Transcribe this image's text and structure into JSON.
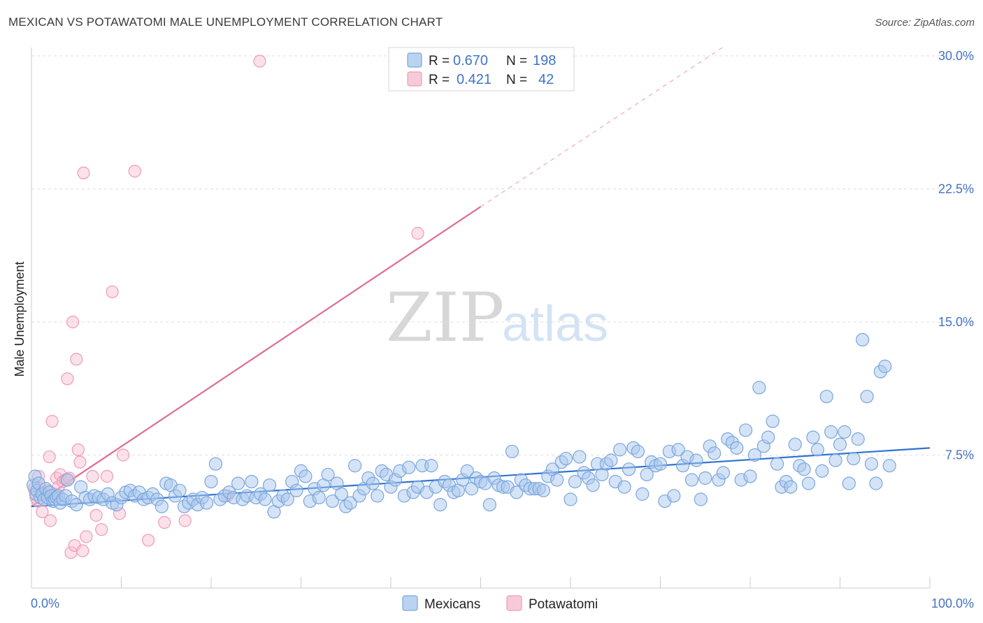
{
  "title": "MEXICAN VS POTAWATOMI MALE UNEMPLOYMENT CORRELATION CHART",
  "source": "Source: ZipAtlas.com",
  "watermark": {
    "zip": "ZIP",
    "atlas": "atlas"
  },
  "colors": {
    "mexicans_fill": "#a9c8ee",
    "mexicans_stroke": "#7aa6dc",
    "mexicans_line": "#2f73d0",
    "potawatomi_fill": "#f6bdd0",
    "potawatomi_stroke": "#ef9bb8",
    "potawatomi_line": "#e26a96",
    "tick_label": "#4472c4",
    "grid": "#dddddd"
  },
  "legend": {
    "rows": [
      {
        "r_label": "R = ",
        "r_value": "0.670",
        "n_label": "N = ",
        "n_value": "198"
      },
      {
        "r_label": "R = ",
        "r_value": "0.421",
        "n_label": "N = ",
        "n_value": "42"
      }
    ]
  },
  "bottom_legend": [
    "Mexicans",
    "Potawatomi"
  ],
  "chart_data": {
    "type": "scatter",
    "title": "MEXICAN VS POTAWATOMI MALE UNEMPLOYMENT CORRELATION CHART",
    "xlabel": "",
    "ylabel": "Male Unemployment",
    "xlim": [
      0,
      100
    ],
    "ylim": [
      0,
      30
    ],
    "x_tick_labels": [
      "0.0%",
      "100.0%"
    ],
    "y_ticks": [
      7.5,
      15.0,
      22.5,
      30.0
    ],
    "y_tick_labels": [
      "7.5%",
      "15.0%",
      "22.5%",
      "30.0%"
    ],
    "grid": true,
    "legend_position": "top-center",
    "series": [
      {
        "name": "Mexicans",
        "r": 0.67,
        "n": 198,
        "trend": {
          "x": [
            0,
            100
          ],
          "y": [
            4.6,
            7.9
          ]
        },
        "points": [
          [
            0.2,
            5.8
          ],
          [
            0.4,
            6.3
          ],
          [
            0.5,
            5.3
          ],
          [
            0.6,
            5.5
          ],
          [
            0.8,
            5.9
          ],
          [
            1.0,
            5.1
          ],
          [
            1.2,
            5.3
          ],
          [
            1.4,
            5.0
          ],
          [
            1.6,
            5.6
          ],
          [
            1.8,
            5.1
          ],
          [
            2.0,
            5.4
          ],
          [
            2.2,
            5.2
          ],
          [
            2.4,
            4.9
          ],
          [
            2.6,
            5.0
          ],
          [
            2.8,
            5.1
          ],
          [
            3.0,
            5.2
          ],
          [
            3.2,
            4.8
          ],
          [
            3.5,
            5.0
          ],
          [
            3.8,
            5.2
          ],
          [
            4.0,
            6.1
          ],
          [
            4.5,
            4.9
          ],
          [
            5.0,
            4.7
          ],
          [
            5.5,
            5.7
          ],
          [
            6.0,
            5.1
          ],
          [
            6.5,
            5.0
          ],
          [
            7.0,
            5.2
          ],
          [
            7.5,
            5.1
          ],
          [
            8.0,
            5.0
          ],
          [
            8.5,
            5.3
          ],
          [
            9.0,
            4.8
          ],
          [
            9.5,
            4.7
          ],
          [
            10.0,
            5.1
          ],
          [
            10.5,
            5.4
          ],
          [
            11.0,
            5.5
          ],
          [
            11.5,
            5.2
          ],
          [
            12.0,
            5.4
          ],
          [
            12.5,
            5.0
          ],
          [
            13.0,
            5.1
          ],
          [
            13.5,
            5.3
          ],
          [
            14.0,
            5.0
          ],
          [
            14.5,
            4.6
          ],
          [
            15.0,
            5.9
          ],
          [
            15.5,
            5.8
          ],
          [
            16.0,
            5.2
          ],
          [
            16.5,
            5.5
          ],
          [
            17.0,
            4.6
          ],
          [
            17.5,
            4.8
          ],
          [
            18.0,
            5.0
          ],
          [
            18.5,
            4.7
          ],
          [
            19.0,
            5.1
          ],
          [
            19.5,
            4.8
          ],
          [
            20.0,
            6.0
          ],
          [
            20.5,
            7.0
          ],
          [
            21.0,
            5.0
          ],
          [
            21.5,
            5.2
          ],
          [
            22.0,
            5.4
          ],
          [
            22.5,
            5.1
          ],
          [
            23.0,
            5.9
          ],
          [
            23.5,
            5.0
          ],
          [
            24.0,
            5.2
          ],
          [
            24.5,
            6.0
          ],
          [
            25.0,
            5.1
          ],
          [
            25.5,
            5.3
          ],
          [
            26.0,
            5.0
          ],
          [
            26.5,
            5.8
          ],
          [
            27.0,
            4.3
          ],
          [
            27.5,
            4.9
          ],
          [
            28.0,
            5.2
          ],
          [
            28.5,
            5.0
          ],
          [
            29.0,
            6.0
          ],
          [
            29.5,
            5.5
          ],
          [
            30.0,
            6.6
          ],
          [
            30.5,
            6.3
          ],
          [
            31.0,
            4.9
          ],
          [
            31.5,
            5.6
          ],
          [
            32.0,
            5.1
          ],
          [
            32.5,
            5.8
          ],
          [
            33.0,
            6.4
          ],
          [
            33.5,
            4.9
          ],
          [
            34.0,
            5.9
          ],
          [
            34.5,
            5.3
          ],
          [
            35.0,
            4.6
          ],
          [
            35.5,
            4.8
          ],
          [
            36.0,
            6.9
          ],
          [
            36.5,
            5.2
          ],
          [
            37.0,
            5.6
          ],
          [
            37.5,
            6.2
          ],
          [
            38.0,
            5.9
          ],
          [
            38.5,
            5.2
          ],
          [
            39.0,
            6.6
          ],
          [
            39.5,
            6.4
          ],
          [
            40.0,
            5.7
          ],
          [
            40.5,
            6.1
          ],
          [
            41.0,
            6.6
          ],
          [
            41.5,
            5.2
          ],
          [
            42.0,
            6.8
          ],
          [
            42.5,
            5.4
          ],
          [
            43.0,
            5.7
          ],
          [
            43.5,
            6.9
          ],
          [
            44.0,
            5.4
          ],
          [
            44.5,
            6.9
          ],
          [
            45.0,
            5.7
          ],
          [
            45.5,
            4.7
          ],
          [
            46.0,
            6.0
          ],
          [
            46.5,
            5.8
          ],
          [
            47.0,
            5.4
          ],
          [
            47.5,
            5.5
          ],
          [
            48.0,
            6.1
          ],
          [
            48.5,
            6.6
          ],
          [
            49.0,
            5.6
          ],
          [
            49.5,
            6.2
          ],
          [
            50.0,
            6.0
          ],
          [
            50.5,
            5.9
          ],
          [
            51.0,
            4.7
          ],
          [
            51.5,
            6.2
          ],
          [
            52.0,
            5.8
          ],
          [
            52.5,
            5.7
          ],
          [
            53.0,
            5.7
          ],
          [
            53.5,
            7.7
          ],
          [
            54.0,
            5.4
          ],
          [
            54.5,
            6.1
          ],
          [
            55.0,
            5.8
          ],
          [
            55.5,
            5.6
          ],
          [
            56.0,
            5.6
          ],
          [
            56.5,
            5.6
          ],
          [
            57.0,
            5.5
          ],
          [
            57.5,
            6.3
          ],
          [
            58.0,
            6.7
          ],
          [
            58.5,
            6.1
          ],
          [
            59.0,
            7.1
          ],
          [
            59.5,
            7.3
          ],
          [
            60.0,
            5.0
          ],
          [
            60.5,
            6.0
          ],
          [
            61.0,
            7.4
          ],
          [
            61.5,
            6.5
          ],
          [
            62.0,
            6.2
          ],
          [
            62.5,
            5.8
          ],
          [
            63.0,
            7.0
          ],
          [
            63.5,
            6.4
          ],
          [
            64.0,
            7.0
          ],
          [
            64.5,
            7.2
          ],
          [
            65.0,
            6.0
          ],
          [
            65.5,
            7.8
          ],
          [
            66.0,
            5.7
          ],
          [
            66.5,
            6.7
          ],
          [
            67.0,
            7.9
          ],
          [
            67.5,
            7.7
          ],
          [
            68.0,
            5.3
          ],
          [
            68.5,
            6.4
          ],
          [
            69.0,
            7.1
          ],
          [
            69.5,
            6.9
          ],
          [
            70.0,
            7.0
          ],
          [
            70.5,
            4.9
          ],
          [
            71.0,
            7.7
          ],
          [
            71.5,
            5.2
          ],
          [
            72.0,
            7.8
          ],
          [
            72.5,
            6.9
          ],
          [
            73.0,
            7.4
          ],
          [
            73.5,
            6.1
          ],
          [
            74.0,
            7.2
          ],
          [
            74.5,
            5.0
          ],
          [
            75.0,
            6.2
          ],
          [
            75.5,
            8.0
          ],
          [
            76.0,
            7.6
          ],
          [
            76.5,
            6.1
          ],
          [
            77.0,
            6.5
          ],
          [
            77.5,
            8.4
          ],
          [
            78.0,
            8.2
          ],
          [
            78.5,
            7.9
          ],
          [
            79.0,
            6.1
          ],
          [
            79.5,
            8.9
          ],
          [
            80.0,
            6.3
          ],
          [
            80.5,
            7.5
          ],
          [
            81.0,
            11.3
          ],
          [
            81.5,
            8.0
          ],
          [
            82.0,
            8.5
          ],
          [
            82.5,
            9.4
          ],
          [
            83.0,
            7.0
          ],
          [
            83.5,
            5.7
          ],
          [
            84.0,
            6.0
          ],
          [
            84.5,
            5.7
          ],
          [
            85.0,
            8.1
          ],
          [
            85.5,
            6.9
          ],
          [
            86.0,
            6.7
          ],
          [
            86.5,
            5.9
          ],
          [
            87.0,
            8.5
          ],
          [
            87.5,
            7.8
          ],
          [
            88.0,
            6.6
          ],
          [
            88.5,
            10.8
          ],
          [
            89.0,
            8.8
          ],
          [
            89.5,
            7.2
          ],
          [
            90.0,
            8.1
          ],
          [
            90.5,
            8.8
          ],
          [
            91.0,
            5.9
          ],
          [
            91.5,
            7.3
          ],
          [
            92.0,
            8.4
          ],
          [
            92.5,
            14.0
          ],
          [
            93.0,
            10.8
          ],
          [
            93.5,
            7.0
          ],
          [
            94.0,
            5.9
          ],
          [
            94.5,
            12.2
          ],
          [
            95.0,
            12.5
          ],
          [
            95.5,
            6.9
          ]
        ]
      },
      {
        "name": "Potawatomi",
        "r": 0.421,
        "n": 42,
        "trend": {
          "x": [
            0,
            50
          ],
          "y": [
            4.6,
            21.5
          ]
        },
        "trend_extension": {
          "x": [
            50,
            77
          ],
          "y": [
            21.5,
            30.5
          ]
        },
        "points": [
          [
            0.3,
            5.6
          ],
          [
            0.5,
            5.1
          ],
          [
            0.7,
            4.9
          ],
          [
            0.8,
            6.3
          ],
          [
            1.0,
            5.6
          ],
          [
            1.2,
            4.3
          ],
          [
            1.5,
            5.4
          ],
          [
            1.8,
            5.5
          ],
          [
            2.0,
            7.4
          ],
          [
            2.1,
            3.8
          ],
          [
            2.3,
            9.4
          ],
          [
            2.6,
            5.3
          ],
          [
            2.8,
            6.2
          ],
          [
            3.0,
            5.7
          ],
          [
            3.2,
            6.4
          ],
          [
            3.5,
            6.0
          ],
          [
            3.8,
            6.1
          ],
          [
            4.0,
            11.8
          ],
          [
            4.2,
            6.2
          ],
          [
            4.4,
            2.0
          ],
          [
            4.6,
            15.0
          ],
          [
            4.8,
            2.4
          ],
          [
            5.0,
            12.9
          ],
          [
            5.2,
            7.8
          ],
          [
            5.4,
            7.1
          ],
          [
            5.7,
            2.1
          ],
          [
            5.8,
            23.4
          ],
          [
            6.1,
            2.9
          ],
          [
            6.8,
            6.3
          ],
          [
            7.2,
            4.1
          ],
          [
            7.8,
            3.3
          ],
          [
            8.4,
            6.3
          ],
          [
            9.0,
            16.7
          ],
          [
            9.8,
            4.2
          ],
          [
            10.2,
            7.5
          ],
          [
            11.5,
            23.5
          ],
          [
            13.0,
            2.7
          ],
          [
            14.8,
            3.7
          ],
          [
            17.1,
            3.8
          ],
          [
            25.4,
            29.7
          ],
          [
            43.0,
            20.0
          ],
          [
            21.8,
            5.2
          ]
        ]
      }
    ]
  }
}
